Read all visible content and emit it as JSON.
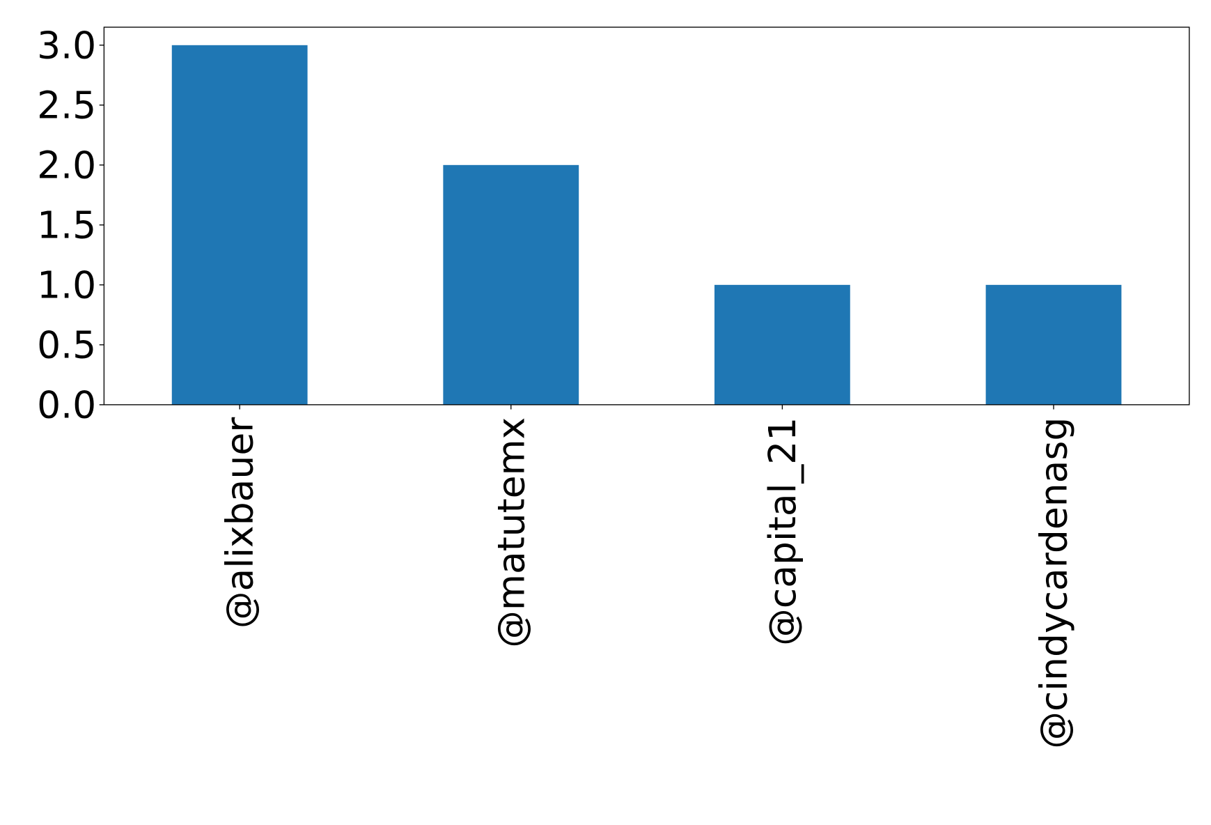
{
  "chart_data": {
    "type": "bar",
    "title": "",
    "xlabel": "",
    "ylabel": "",
    "categories": [
      "@alixbauer",
      "@matutemx",
      "@capital_21",
      "@cindycardenasg"
    ],
    "values": [
      3,
      2,
      1,
      1
    ],
    "ylim": [
      0,
      3.15
    ],
    "yticks": [
      0.0,
      0.5,
      1.0,
      1.5,
      2.0,
      2.5,
      3.0
    ],
    "ytick_labels": [
      "0.0",
      "0.5",
      "1.0",
      "1.5",
      "2.0",
      "2.5",
      "3.0"
    ],
    "grid": false,
    "legend": "none",
    "bar_color": "#1f77b4"
  }
}
